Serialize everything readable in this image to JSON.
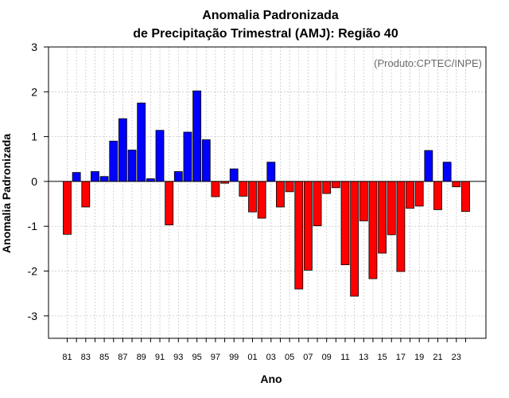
{
  "chart_data": {
    "type": "bar",
    "title": "Anomalia Padronizada",
    "subtitle": "de Precipitação Trimestral (AMJ): Região 40",
    "xlabel": "Ano",
    "ylabel": "Anomalia Padronizada",
    "annotation": "(Produto:CPTEC/INPE)",
    "ylim": [
      -3.5,
      3
    ],
    "yticks": [
      -3,
      -2,
      -1,
      0,
      1,
      2,
      3
    ],
    "grid": true,
    "categories": [
      "1981",
      "1982",
      "1983",
      "1984",
      "1985",
      "1986",
      "1987",
      "1988",
      "1989",
      "1990",
      "1991",
      "1992",
      "1993",
      "1994",
      "1995",
      "1996",
      "1997",
      "1998",
      "1999",
      "2000",
      "2001",
      "2002",
      "2003",
      "2004",
      "2005",
      "2006",
      "2007",
      "2008",
      "2009",
      "2010",
      "2011",
      "2012",
      "2013",
      "2014",
      "2015",
      "2016",
      "2017",
      "2018",
      "2019",
      "2020",
      "2021",
      "2022",
      "2023",
      "2024"
    ],
    "values": [
      -1.18,
      0.2,
      -0.57,
      0.22,
      0.11,
      0.9,
      1.4,
      0.7,
      1.75,
      0.06,
      1.14,
      -0.97,
      0.22,
      1.1,
      2.02,
      0.93,
      -0.34,
      -0.04,
      0.28,
      -0.33,
      -0.68,
      -0.82,
      0.43,
      -0.57,
      -0.23,
      -2.4,
      -1.98,
      -0.99,
      -0.27,
      -0.14,
      -1.86,
      -2.56,
      -0.88,
      -2.17,
      -1.6,
      -1.19,
      -2.01,
      -0.6,
      -0.55,
      0.69,
      -0.63,
      0.43,
      -0.12,
      -0.67
    ],
    "xtick_labels": [
      "81",
      "83",
      "85",
      "87",
      "89",
      "91",
      "93",
      "95",
      "97",
      "99",
      "01",
      "03",
      "05",
      "07",
      "09",
      "11",
      "13",
      "15",
      "17",
      "19",
      "21",
      "23"
    ],
    "positive_color": "#0000ff",
    "negative_color": "#ff0000"
  }
}
